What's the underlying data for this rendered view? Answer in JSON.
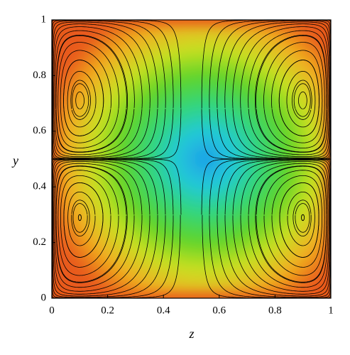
{
  "chart_data": {
    "type": "streamline",
    "x_label": "z",
    "y_label": "y",
    "xlim": [
      0,
      1
    ],
    "ylim": [
      0,
      1
    ],
    "xticks": [
      0,
      0.2,
      0.4,
      0.6,
      0.8,
      1
    ],
    "yticks": [
      0,
      0.2,
      0.4,
      0.6,
      0.8,
      1
    ],
    "colormap": [
      "#1e9ee8",
      "#22c9d8",
      "#33d67a",
      "#5fd42a",
      "#c8e020",
      "#f0b020",
      "#e85a1a"
    ],
    "line_color": "#000000"
  }
}
